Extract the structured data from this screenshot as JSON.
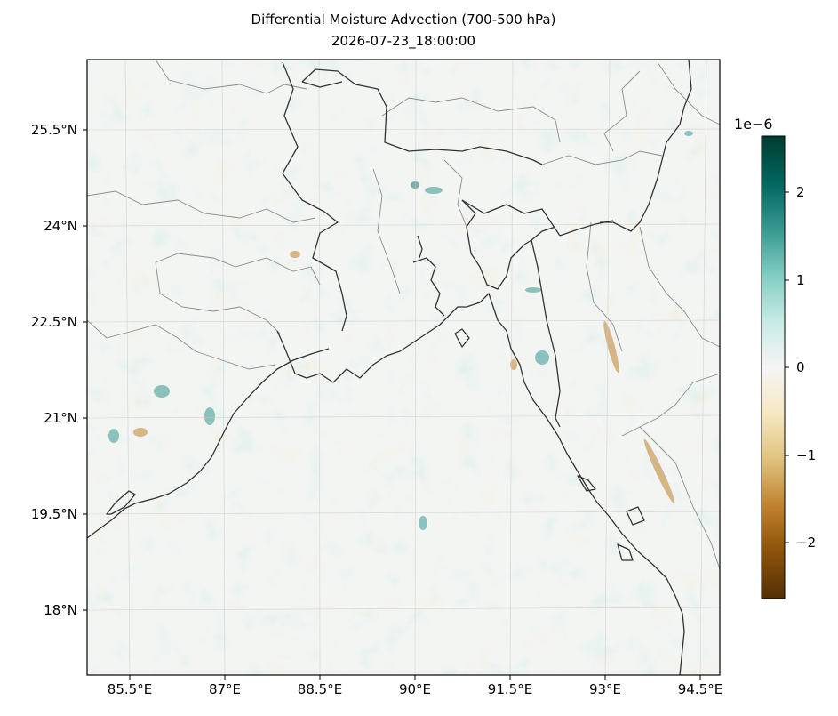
{
  "title": "Differential Moisture Advection (700-500 hPa)",
  "subtitle": "2026-07-23_18:00:00",
  "lat_labels": [
    "25.5°N",
    "24°N",
    "22.5°N",
    "21°N",
    "19.5°N",
    "18°N"
  ],
  "lon_labels": [
    "85.5°E",
    "87°E",
    "88.5°E",
    "90°E",
    "91.5°E",
    "93°E",
    "94.5°E"
  ],
  "colorbar": {
    "exponent": "1e−6",
    "ticks": [
      "2",
      "1",
      "0",
      "−1",
      "−2"
    ],
    "colormap": "BrBG",
    "range": [
      -2.6,
      2.6
    ],
    "colors": [
      "#003c30",
      "#01665e",
      "#35978f",
      "#80cdc1",
      "#c7eae5",
      "#f5f5f5",
      "#f6e8c3",
      "#dfc27d",
      "#bf812d",
      "#8c510a",
      "#543005"
    ]
  },
  "map": {
    "lon_range": [
      84.8,
      94.8
    ],
    "lat_range": [
      16.8,
      26.5
    ],
    "gridlines": true,
    "coastline_color": "#333333",
    "border_color": "#888888"
  }
}
